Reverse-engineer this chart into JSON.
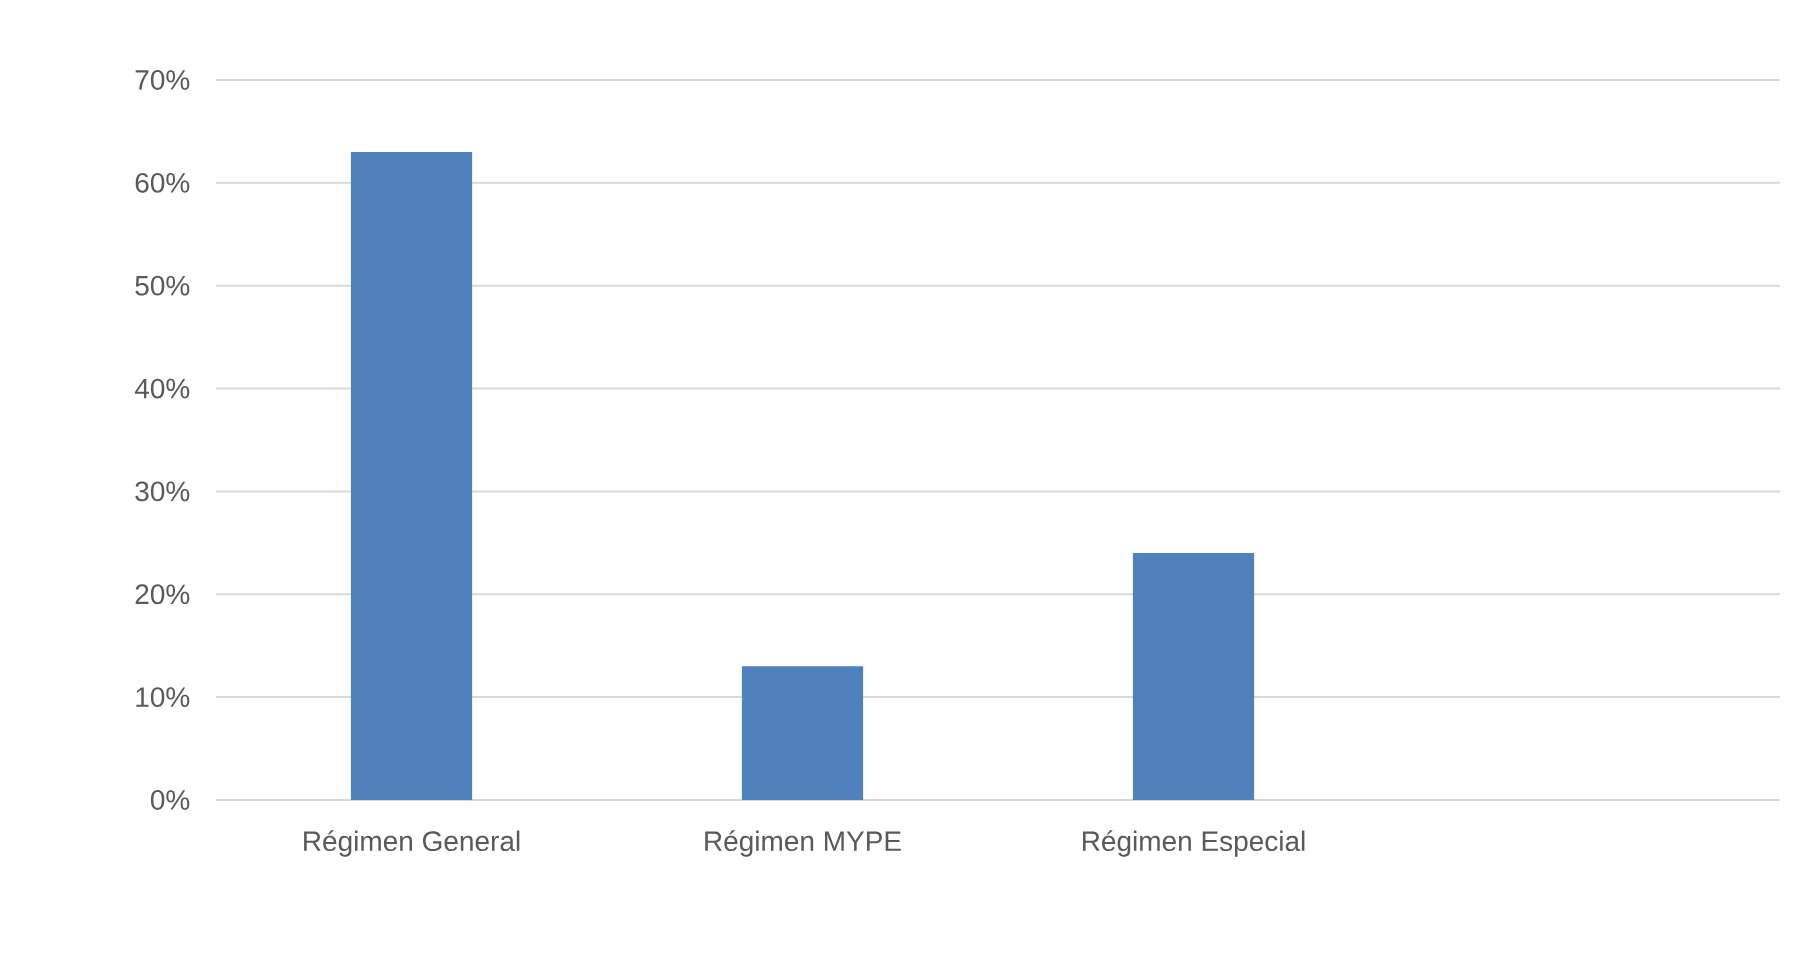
{
  "chart_data": {
    "type": "bar",
    "categories": [
      "Régimen General",
      "Régimen MYPE",
      "Régimen Especial",
      null
    ],
    "values": [
      63,
      13,
      24,
      null
    ],
    "color": "#4f81bd",
    "ylim": [
      0,
      70
    ],
    "yticks": [
      {
        "value": 0,
        "label": "0%"
      },
      {
        "value": 10,
        "label": "10%"
      },
      {
        "value": 20,
        "label": "20%"
      },
      {
        "value": 30,
        "label": "30%"
      },
      {
        "value": 40,
        "label": "40%"
      },
      {
        "value": 50,
        "label": "50%"
      },
      {
        "value": 60,
        "label": "60%"
      },
      {
        "value": 70,
        "label": "70%"
      }
    ],
    "grid": "y"
  }
}
